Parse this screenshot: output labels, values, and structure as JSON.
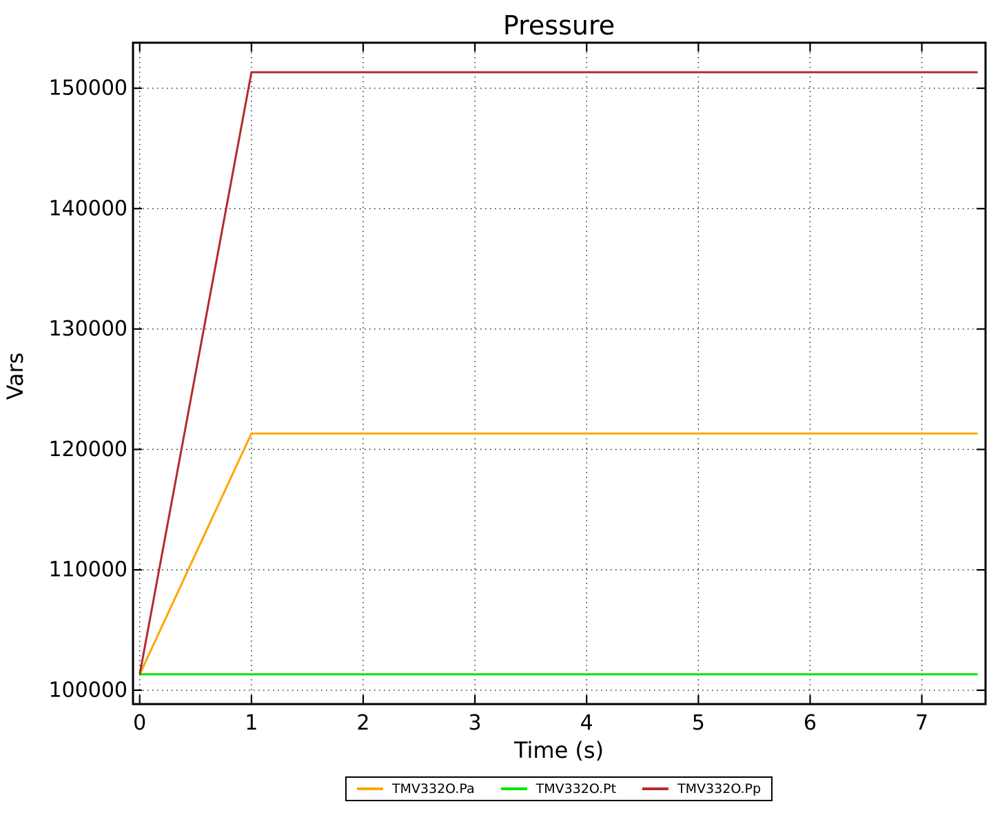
{
  "figure": {
    "background": "#ffffff",
    "text_color": "#000000"
  },
  "chart_data": {
    "type": "line",
    "title": "Pressure",
    "xlabel": "Time (s)",
    "ylabel": "Vars",
    "xlim": [
      -0.06,
      7.57
    ],
    "ylim": [
      98850,
      153780
    ],
    "xticks": [
      0,
      1,
      2,
      3,
      4,
      5,
      6,
      7
    ],
    "yticks": [
      100000,
      110000,
      120000,
      130000,
      140000,
      150000
    ],
    "grid": true,
    "grid_style": "dotted",
    "grid_color": "#000000",
    "axis_color": "#000000",
    "legend_position": "bottom-center-outside",
    "series": [
      {
        "name": "TMV332O.Pa",
        "color": "#FFA500",
        "x": [
          0,
          1,
          7.5
        ],
        "y": [
          101325,
          121325,
          121325
        ]
      },
      {
        "name": "TMV332O.Pt",
        "color": "#00E600",
        "x": [
          0,
          7.5
        ],
        "y": [
          101325,
          101325
        ]
      },
      {
        "name": "TMV332O.Pp",
        "color": "#B22C2C",
        "x": [
          0,
          1,
          7.5
        ],
        "y": [
          101325,
          151325,
          151325
        ]
      }
    ]
  }
}
